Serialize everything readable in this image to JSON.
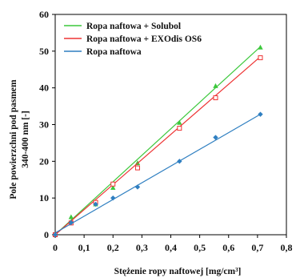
{
  "chart_data": {
    "type": "scatter",
    "xlabel": "Stężenie ropy naftowej [mg/cm³]",
    "ylabel_lines": [
      "Pole powierzchni pod pasmem",
      "340-400 nm [-]"
    ],
    "xlim": [
      0,
      0.8
    ],
    "ylim": [
      0,
      60
    ],
    "x_ticks": [
      "0",
      "0,1",
      "0,2",
      "0,3",
      "0,4",
      "0,5",
      "0,6",
      "0,7",
      "0,8"
    ],
    "y_ticks": [
      "0",
      "10",
      "20",
      "30",
      "40",
      "50",
      "60"
    ],
    "x_tick_values": [
      0,
      0.1,
      0.2,
      0.3,
      0.4,
      0.5,
      0.6,
      0.7,
      0.8
    ],
    "y_tick_values": [
      0,
      10,
      20,
      30,
      40,
      50,
      60
    ],
    "legend_position": "top-left",
    "series": [
      {
        "name": "Ropa naftowa + Solubol",
        "color": "#3cc83c",
        "marker": "triangle",
        "x": [
          0,
          0.055,
          0.14,
          0.2,
          0.285,
          0.43,
          0.555,
          0.71
        ],
        "y": [
          0,
          4.8,
          8.3,
          12.8,
          19.5,
          30.5,
          40.5,
          51.0
        ],
        "trend": [
          [
            0,
            0
          ],
          [
            0.71,
            51.2
          ]
        ]
      },
      {
        "name": "Ropa naftowa + EXOdis OS6",
        "color": "#ee3333",
        "marker": "square-open",
        "x": [
          0,
          0.055,
          0.14,
          0.2,
          0.285,
          0.43,
          0.555,
          0.71
        ],
        "y": [
          0,
          3.2,
          8.8,
          13.8,
          18.2,
          29.0,
          37.3,
          48.2
        ],
        "trend": [
          [
            0,
            0
          ],
          [
            0.71,
            48.5
          ]
        ]
      },
      {
        "name": "Ropa naftowa",
        "color": "#2f7fc1",
        "marker": "diamond",
        "x": [
          0,
          0.055,
          0.14,
          0.2,
          0.285,
          0.43,
          0.555,
          0.71
        ],
        "y": [
          0,
          3.3,
          8.3,
          10.0,
          13.0,
          20.0,
          26.5,
          32.8
        ],
        "trend": [
          [
            0,
            0.5
          ],
          [
            0.71,
            32.8
          ]
        ]
      }
    ]
  }
}
